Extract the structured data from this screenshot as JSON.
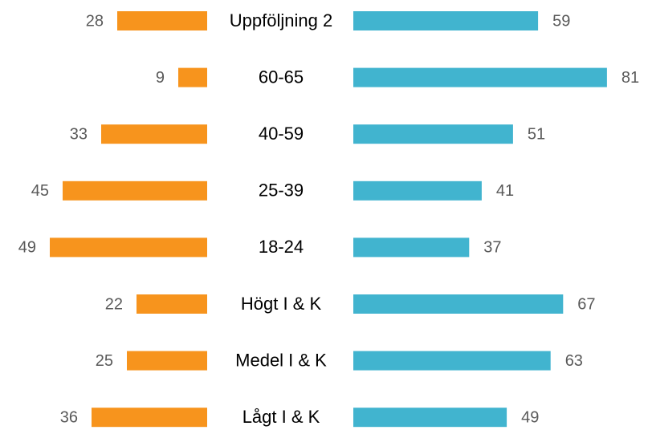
{
  "chart_data": {
    "type": "bar",
    "categories": [
      "Uppföljning 2",
      "60-65",
      "40-59",
      "25-39",
      "18-24",
      "Högt I & K",
      "Medel I & K",
      "Lågt I & K"
    ],
    "series": [
      {
        "color": "#F7941D",
        "values": [
          28,
          9,
          33,
          45,
          49,
          22,
          25,
          36
        ]
      },
      {
        "color": "#41B4CF",
        "values": [
          59,
          81,
          51,
          41,
          37,
          67,
          63,
          49
        ]
      }
    ]
  }
}
